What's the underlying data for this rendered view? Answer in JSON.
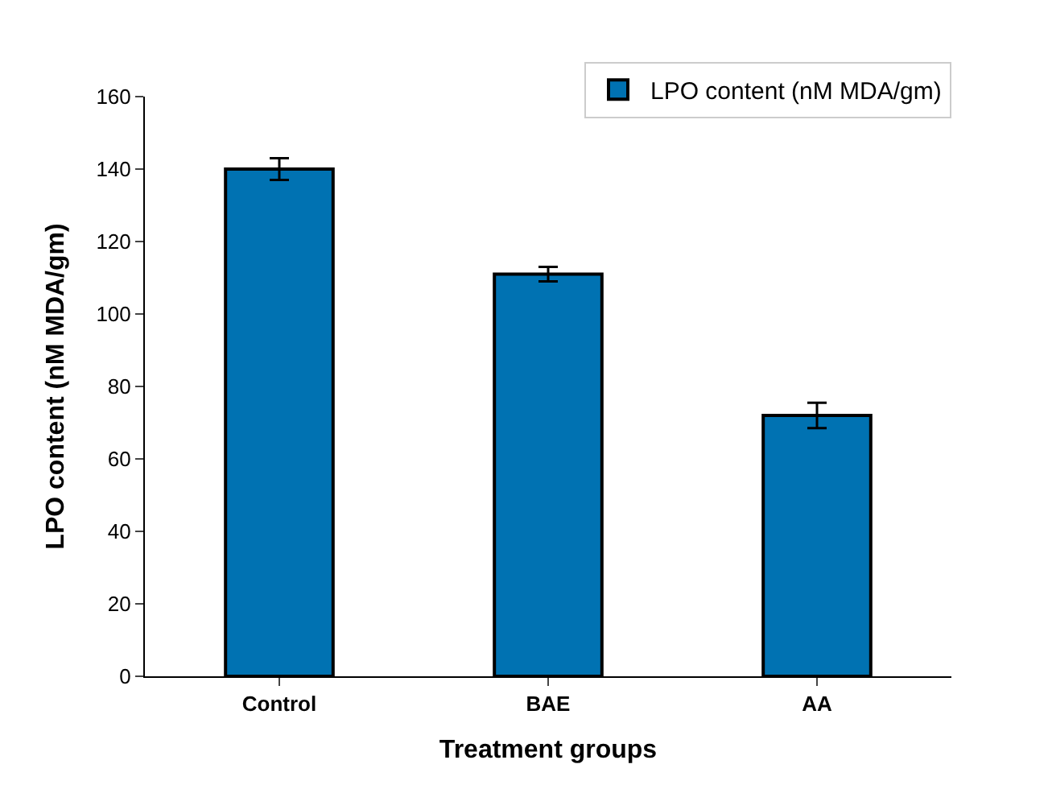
{
  "chart_data": {
    "type": "bar",
    "xlabel": "Treatment groups",
    "ylabel": "LPO content (nM MDA/gm)",
    "categories": [
      "Control",
      "BAE",
      "AA"
    ],
    "series": [
      {
        "name": "LPO content (nM MDA/gm)",
        "color": "#0072b2",
        "values": [
          140,
          111,
          72
        ],
        "errors": [
          3,
          2,
          3.5
        ]
      }
    ],
    "ylim": [
      0,
      160
    ],
    "yticks": [
      0,
      20,
      40,
      60,
      80,
      100,
      120,
      140,
      160
    ],
    "legend": "top right"
  }
}
